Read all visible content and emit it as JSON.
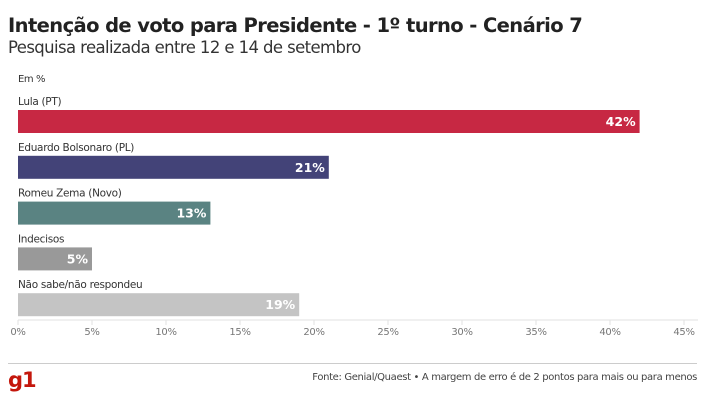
{
  "header": {
    "title": "Intenção de voto para Presidente - 1º turno - Cenário 7",
    "subtitle": "Pesquisa realizada entre 12 e 14 de setembro",
    "unit": "Em %"
  },
  "footer": {
    "logo": "g1",
    "source": "Fonte: Genial/Quaest • A margem de erro é de 2 pontos para mais ou para menos"
  },
  "chart_data": {
    "type": "bar",
    "orientation": "horizontal",
    "title": "Intenção de voto para Presidente - 1º turno - Cenário 7",
    "subtitle": "Pesquisa realizada entre 12 e 14 de setembro",
    "ylabel": "Em %",
    "xlabel": "",
    "categories": [
      "Lula (PT)",
      "Eduardo Bolsonaro (PL)",
      "Romeu Zema (Novo)",
      "Indecisos",
      "Não sabe/não respondeu"
    ],
    "values": [
      42,
      21,
      13,
      5,
      19
    ],
    "value_labels": [
      "42%",
      "21%",
      "13%",
      "5%",
      "19%"
    ],
    "colors": [
      "#c72843",
      "#434378",
      "#5a8382",
      "#999999",
      "#c4c4c4"
    ],
    "xlim": [
      0,
      45
    ],
    "xticks": [
      0,
      5,
      10,
      15,
      20,
      25,
      30,
      35,
      40,
      45
    ],
    "xtick_labels": [
      "0%",
      "5%",
      "10%",
      "15%",
      "20%",
      "25%",
      "30%",
      "35%",
      "40%",
      "45%"
    ],
    "grid": false,
    "legend": "none"
  }
}
